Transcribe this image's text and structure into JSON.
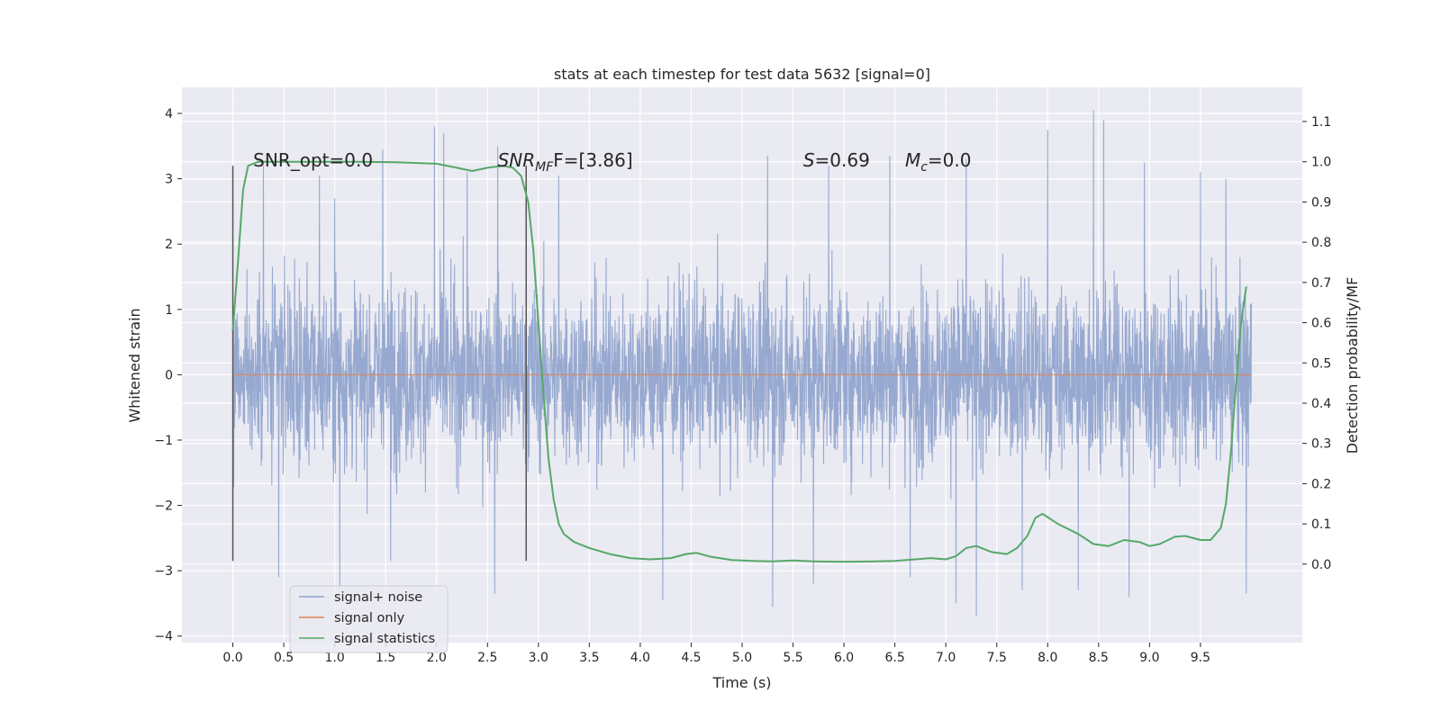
{
  "chart_data": {
    "type": "line",
    "title": "stats at each timestep for test data 5632 [signal=0]",
    "xlabel": "Time (s)",
    "ylabel": "Whitened strain",
    "ylabel_right": "Detection probability/MF",
    "xlim": [
      -0.5,
      10.5
    ],
    "ylim": [
      -4.1,
      4.4
    ],
    "ylim_right": [
      -0.195,
      1.185
    ],
    "xticks": [
      "0.0",
      "0.5",
      "1.0",
      "1.5",
      "2.0",
      "2.5",
      "3.0",
      "3.5",
      "4.0",
      "4.5",
      "5.0",
      "5.5",
      "6.0",
      "6.5",
      "7.0",
      "7.5",
      "8.0",
      "8.5",
      "9.0",
      "9.5"
    ],
    "yticks": [
      "4",
      "3",
      "2",
      "1",
      "0",
      "−1",
      "−2",
      "−3",
      "−4"
    ],
    "yticks_right": [
      "1.1",
      "1.0",
      "0.9",
      "0.8",
      "0.7",
      "0.6",
      "0.5",
      "0.4",
      "0.3",
      "0.2",
      "0.1",
      "0.0"
    ],
    "grid": true,
    "legend_position": "lower-left",
    "annotations": [
      {
        "text": "SNR_opt=0.0",
        "x": 0.2
      },
      {
        "text": "SNR",
        "sub": "MF",
        "tail": "F=[3.86]",
        "x": 2.6
      },
      {
        "text": "S",
        "tail": "=0.69",
        "x": 5.6
      },
      {
        "text": "M",
        "sub": "c",
        "tail": "=0.0",
        "x": 6.6
      }
    ],
    "vlines": [
      {
        "x": 0.0,
        "y": [
          -2.85,
          3.2
        ]
      },
      {
        "x": 2.88,
        "y": [
          -2.85,
          3.2
        ]
      }
    ],
    "series": [
      {
        "name": "signal+ noise",
        "color": "#8ea2cc",
        "kind": "noise-trace",
        "x_range": [
          0.0,
          10.0
        ],
        "envelope_core": [
          -1.45,
          1.45
        ],
        "peak_max": 4.05,
        "trough_min": -3.7,
        "peaks": [
          {
            "x": 0.3,
            "y": 3.2
          },
          {
            "x": 0.85,
            "y": 3.05
          },
          {
            "x": 1.0,
            "y": 2.7
          },
          {
            "x": 1.47,
            "y": 3.45
          },
          {
            "x": 1.98,
            "y": 3.8
          },
          {
            "x": 2.07,
            "y": 3.7
          },
          {
            "x": 2.3,
            "y": 3.1
          },
          {
            "x": 2.6,
            "y": 3.5
          },
          {
            "x": 3.2,
            "y": 3.05
          },
          {
            "x": 5.25,
            "y": 3.35
          },
          {
            "x": 5.85,
            "y": 3.2
          },
          {
            "x": 6.45,
            "y": 3.35
          },
          {
            "x": 7.2,
            "y": 3.3
          },
          {
            "x": 8.0,
            "y": 3.75
          },
          {
            "x": 8.3,
            "y": 3.6
          },
          {
            "x": 8.45,
            "y": 4.05
          },
          {
            "x": 8.55,
            "y": 3.9
          },
          {
            "x": 8.95,
            "y": 3.25
          },
          {
            "x": 9.5,
            "y": 3.1
          },
          {
            "x": 9.75,
            "y": 3.0
          }
        ],
        "troughs": [
          {
            "x": 0.45,
            "y": -3.1
          },
          {
            "x": 1.05,
            "y": -3.3
          },
          {
            "x": 1.55,
            "y": -2.85
          },
          {
            "x": 2.57,
            "y": -3.35
          },
          {
            "x": 4.22,
            "y": -3.45
          },
          {
            "x": 5.3,
            "y": -3.55
          },
          {
            "x": 5.7,
            "y": -3.2
          },
          {
            "x": 6.65,
            "y": -3.1
          },
          {
            "x": 7.1,
            "y": -3.5
          },
          {
            "x": 7.3,
            "y": -3.7
          },
          {
            "x": 7.75,
            "y": -3.3
          },
          {
            "x": 8.3,
            "y": -3.3
          },
          {
            "x": 8.8,
            "y": -3.4
          },
          {
            "x": 9.95,
            "y": -3.35
          }
        ]
      },
      {
        "name": "signal only",
        "color": "#dd8452",
        "x": [
          0.0,
          10.0
        ],
        "y": [
          0.0,
          0.0
        ]
      },
      {
        "name": "signal statistics",
        "color": "#55a868",
        "axis": "right",
        "x": [
          0.0,
          0.05,
          0.1,
          0.15,
          0.25,
          0.4,
          0.8,
          1.2,
          1.6,
          2.0,
          2.2,
          2.35,
          2.5,
          2.65,
          2.75,
          2.83,
          2.9,
          2.95,
          3.0,
          3.05,
          3.1,
          3.15,
          3.2,
          3.25,
          3.35,
          3.5,
          3.7,
          3.9,
          4.1,
          4.3,
          4.45,
          4.55,
          4.7,
          4.9,
          5.1,
          5.3,
          5.5,
          5.7,
          5.9,
          6.1,
          6.3,
          6.5,
          6.7,
          6.85,
          7.0,
          7.1,
          7.2,
          7.3,
          7.45,
          7.6,
          7.7,
          7.8,
          7.88,
          7.95,
          8.1,
          8.3,
          8.45,
          8.6,
          8.75,
          8.9,
          9.0,
          9.1,
          9.25,
          9.35,
          9.5,
          9.6,
          9.7,
          9.75,
          9.8,
          9.85,
          9.9,
          9.95
        ],
        "y": [
          0.58,
          0.75,
          0.93,
          0.99,
          1.0,
          1.0,
          1.0,
          1.0,
          0.999,
          0.995,
          0.985,
          0.977,
          0.985,
          0.99,
          0.985,
          0.965,
          0.9,
          0.78,
          0.6,
          0.42,
          0.26,
          0.16,
          0.1,
          0.075,
          0.055,
          0.04,
          0.025,
          0.015,
          0.012,
          0.015,
          0.025,
          0.028,
          0.018,
          0.01,
          0.008,
          0.007,
          0.009,
          0.007,
          0.006,
          0.006,
          0.007,
          0.008,
          0.012,
          0.015,
          0.012,
          0.02,
          0.04,
          0.045,
          0.03,
          0.025,
          0.04,
          0.07,
          0.115,
          0.125,
          0.1,
          0.075,
          0.05,
          0.045,
          0.06,
          0.055,
          0.045,
          0.05,
          0.068,
          0.07,
          0.06,
          0.06,
          0.09,
          0.15,
          0.28,
          0.45,
          0.6,
          0.69
        ]
      }
    ]
  }
}
